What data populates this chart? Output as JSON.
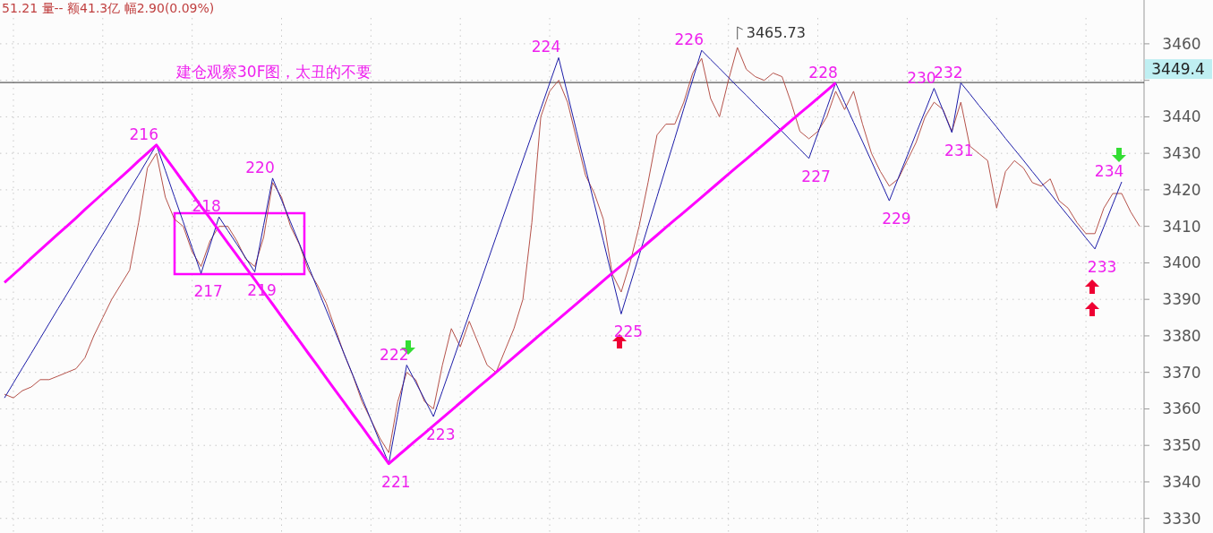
{
  "chart_data": {
    "type": "line",
    "title": "建仓观察30F图，太丑的不要",
    "subtitle": "51.21 量-- 额41.3亿 幅2.90(0.09%)",
    "categories": [
      null,
      null,
      null,
      null,
      null,
      null,
      null,
      null,
      null,
      null,
      null,
      null,
      null,
      null,
      null,
      null,
      null,
      null,
      null,
      null,
      null,
      null,
      null,
      null,
      null,
      null,
      null,
      null,
      null,
      null,
      null,
      null,
      null,
      null,
      null,
      null,
      null,
      null,
      null,
      null,
      null,
      null,
      null,
      null,
      null,
      null,
      null,
      null,
      null,
      null,
      null,
      null,
      null,
      null,
      null,
      null,
      null,
      null,
      null,
      null,
      null,
      null,
      null,
      null,
      null,
      null,
      null,
      null,
      null,
      null,
      null,
      null,
      null,
      null,
      null,
      null,
      null,
      null,
      null,
      null,
      null,
      null,
      null,
      null,
      null,
      null,
      null,
      null,
      null,
      null,
      null,
      null,
      null,
      null,
      null,
      null,
      null,
      null,
      null,
      null,
      null,
      null,
      null,
      null,
      null,
      null,
      null,
      null,
      null,
      null,
      null,
      null,
      null,
      null,
      null,
      null,
      null,
      null,
      null,
      null,
      null,
      null,
      null,
      null,
      null,
      null,
      null,
      null
    ],
    "ylim": [
      3326,
      3472
    ],
    "yticks": [
      3330,
      3340,
      3350,
      3360,
      3370,
      3380,
      3390,
      3400,
      3410,
      3420,
      3430,
      3440,
      {
        "value": 3450,
        "label": null
      },
      3460
    ],
    "tick_labels": "y",
    "grid": true,
    "series": [
      {
        "color": "#b5524a",
        "values": [
          3364,
          3363,
          3365,
          3366,
          3368,
          3368,
          3369,
          3370,
          3371,
          3374,
          3380,
          3385,
          3390,
          3394,
          3398,
          3411,
          3426,
          3430,
          3418,
          3412,
          3410,
          3403,
          3399,
          3406,
          3410,
          3410,
          3406,
          3401,
          3399,
          3407,
          3422,
          3418,
          3410,
          3405,
          3398,
          3394,
          3389,
          3382,
          3375,
          3369,
          3362,
          3357,
          3352,
          3348,
          3362,
          3370,
          3368,
          3362,
          3360,
          3372,
          3382,
          3377,
          3384,
          3378,
          3372,
          3370,
          3376,
          3382,
          3390,
          3411,
          3440,
          3447,
          3450,
          3444,
          3434,
          3424,
          3419,
          3412,
          3397,
          3392,
          3400,
          3410,
          3422,
          3435,
          3438,
          3438,
          3444,
          3452,
          3456,
          3445,
          3440,
          3450,
          3459,
          3453,
          3451,
          3450,
          3452,
          3451,
          3444,
          3436,
          3434,
          3436,
          3440,
          3447,
          3442,
          3447,
          3438,
          3430,
          3425,
          3421,
          3423,
          3428,
          3433,
          3440,
          3444,
          3442,
          3436,
          3444,
          3432,
          3430,
          3428,
          3415,
          3425,
          3428,
          3426,
          3422,
          3421,
          3423,
          3417,
          3415,
          3411,
          3408,
          3408,
          3415,
          3419,
          3419,
          3414,
          3410
        ]
      },
      {
        "color": "#1c1ca8",
        "values": [
          3363.0,
          3367.1,
          3371.2,
          3375.2,
          3379.3,
          3383.4,
          3387.5,
          3391.5,
          3395.6,
          3399.7,
          3403.8,
          3407.8,
          3411.9,
          3416.0,
          3420.1,
          3424.1,
          3428.2,
          3432.3,
          3425.3,
          3418.2,
          3411.2,
          3404.1,
          3397.1,
          3404.8,
          3412.6,
          3408.8,
          3405.1,
          3401.3,
          3397.5,
          3410.3,
          3423.2,
          3417.2,
          3411.2,
          3405.2,
          3399.1,
          3393.1,
          3387.1,
          3381.1,
          3375.1,
          3369.1,
          3363.0,
          3357.0,
          3351.0,
          3345.0,
          3358.5,
          3372.0,
          3367.3,
          3362.6,
          3357.9,
          3364.9,
          3371.9,
          3379.0,
          3386.0,
          3393.0,
          3400.0,
          3407.1,
          3414.1,
          3421.1,
          3428.1,
          3435.1,
          3442.2,
          3449.2,
          3456.2,
          3446.2,
          3436.1,
          3426.1,
          3416.1,
          3406.1,
          3396.0,
          3386.0,
          3394.0,
          3402.0,
          3410.1,
          3418.1,
          3426.1,
          3434.1,
          3442.2,
          3450.2,
          3458.2,
          3455.7,
          3453.3,
          3450.8,
          3448.3,
          3445.9,
          3443.4,
          3440.9,
          3438.5,
          3436.0,
          3433.5,
          3431.1,
          3428.6,
          3435.5,
          3442.4,
          3449.3,
          3443.9,
          3438.5,
          3433.2,
          3427.8,
          3422.4,
          3417.0,
          3423.2,
          3429.3,
          3435.5,
          3441.6,
          3447.8,
          3441.8,
          3435.7,
          3449.3,
          3446.3,
          3443.2,
          3440.2,
          3437.2,
          3434.1,
          3431.1,
          3428.1,
          3425.0,
          3422.0,
          3419.0,
          3415.9,
          3412.9,
          3409.9,
          3406.8,
          3403.8,
          3409.9,
          3416.1,
          3422.2,
          null,
          null
        ]
      },
      {
        "color": "#ff00ff",
        "values": [
          3394.6,
          3396.8,
          3399.0,
          3401.3,
          3403.5,
          3405.7,
          3407.9,
          3410.1,
          3412.3,
          3414.6,
          3416.8,
          3419.0,
          3421.2,
          3423.4,
          3425.6,
          3427.9,
          3430.1,
          3432.3,
          3428.9,
          3425.6,
          3422.2,
          3418.9,
          3415.5,
          3412.2,
          3408.8,
          3405.4,
          3402.1,
          3398.7,
          3395.4,
          3392.0,
          3388.7,
          3385.3,
          3381.9,
          3378.6,
          3375.2,
          3371.9,
          3368.5,
          3365.1,
          3361.8,
          3358.4,
          3355.1,
          3351.7,
          3348.4,
          3345.0,
          3347.1,
          3349.2,
          3351.3,
          3353.3,
          3355.4,
          3357.5,
          3359.6,
          3361.7,
          3363.8,
          3365.9,
          3367.9,
          3370.0,
          3372.1,
          3374.2,
          3376.3,
          3378.4,
          3380.5,
          3382.5,
          3384.6,
          3386.7,
          3388.8,
          3390.9,
          3393.0,
          3395.1,
          3397.2,
          3399.2,
          3401.3,
          3403.4,
          3405.5,
          3407.6,
          3409.7,
          3411.8,
          3413.8,
          3415.9,
          3418.0,
          3420.1,
          3422.2,
          3424.3,
          3426.4,
          3428.4,
          3430.5,
          3432.6,
          3434.7,
          3436.8,
          3438.9,
          3441.0,
          3443.0,
          3445.1,
          3447.2,
          3449.3,
          null,
          null,
          null,
          null,
          null,
          null,
          null,
          null,
          null,
          null,
          null,
          null,
          null,
          null,
          null,
          null,
          null,
          null,
          null,
          null,
          null,
          null,
          null,
          null,
          null,
          null,
          null,
          null,
          null,
          null,
          null,
          null,
          null,
          null
        ]
      }
    ],
    "ref_lines": [
      {
        "axis": "y",
        "value": 3449.4,
        "label": "3449.4",
        "color": "#333333"
      }
    ],
    "annotations": [
      "3465.73",
      "216",
      "217",
      "218",
      "219",
      "220",
      "221",
      "222",
      "223",
      "224",
      "225",
      "226",
      "227",
      "228",
      "229",
      "230",
      "231",
      "232",
      "233",
      "234"
    ]
  }
}
